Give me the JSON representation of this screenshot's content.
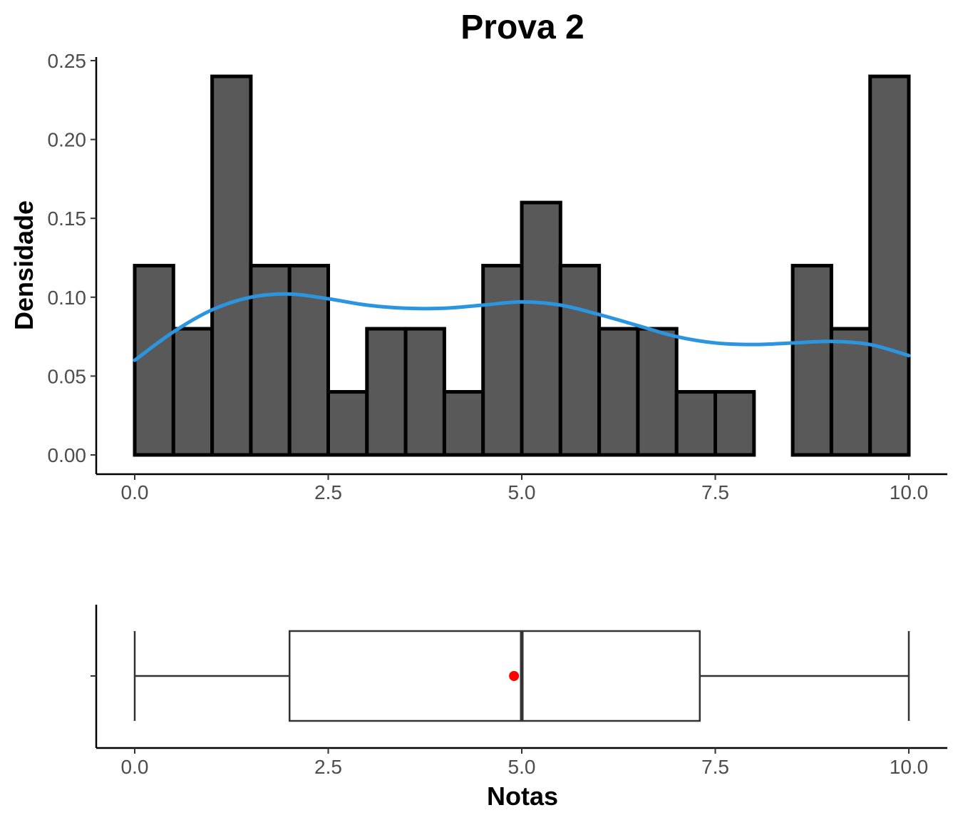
{
  "chart_data": [
    {
      "type": "bar",
      "subtype": "histogram-with-density",
      "title": "Prova 2",
      "xlabel": "",
      "ylabel": "Densidade",
      "xlim": [
        -0.25,
        10.25
      ],
      "ylim": [
        0,
        0.25
      ],
      "xticks": [
        "0.0",
        "2.5",
        "5.0",
        "7.5",
        "10.0"
      ],
      "yticks": [
        "0.00",
        "0.05",
        "0.10",
        "0.15",
        "0.20",
        "0.25"
      ],
      "bin_width": 0.5,
      "bin_starts": [
        0.0,
        0.5,
        1.0,
        1.5,
        2.0,
        2.5,
        3.0,
        3.5,
        4.0,
        4.5,
        5.0,
        5.5,
        6.0,
        6.5,
        7.0,
        7.5,
        8.0,
        8.5,
        9.0,
        9.5
      ],
      "values": [
        0.12,
        0.08,
        0.24,
        0.12,
        0.12,
        0.04,
        0.08,
        0.08,
        0.04,
        0.12,
        0.16,
        0.12,
        0.08,
        0.08,
        0.04,
        0.04,
        0.0,
        0.12,
        0.08,
        0.24
      ],
      "density_curve": {
        "color": "#2b95e0",
        "x": [
          0.0,
          0.5,
          1.0,
          1.5,
          2.0,
          2.5,
          3.0,
          3.5,
          4.0,
          4.5,
          5.0,
          5.5,
          6.0,
          6.5,
          7.0,
          7.5,
          8.0,
          8.5,
          9.0,
          9.5,
          10.0
        ],
        "y": [
          0.06,
          0.078,
          0.092,
          0.1,
          0.102,
          0.099,
          0.095,
          0.093,
          0.093,
          0.095,
          0.097,
          0.095,
          0.089,
          0.082,
          0.075,
          0.071,
          0.07,
          0.071,
          0.072,
          0.07,
          0.063
        ]
      },
      "bar_color": "#595959",
      "grid": false
    },
    {
      "type": "boxplot",
      "xlabel": "Notas",
      "ylabel": "",
      "xlim": [
        -0.25,
        10.25
      ],
      "xticks": [
        "0.0",
        "2.5",
        "5.0",
        "7.5",
        "10.0"
      ],
      "min": 0.0,
      "q1": 2.0,
      "median": 5.0,
      "q3": 7.3,
      "max": 10.0,
      "mean": 4.9,
      "mean_color": "#ff0000"
    }
  ]
}
